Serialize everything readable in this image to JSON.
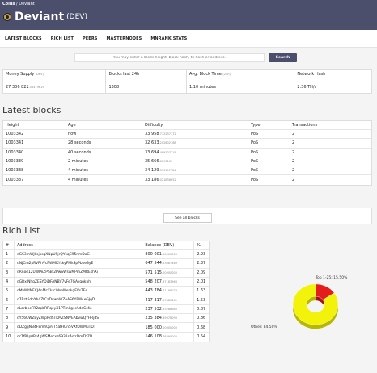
{
  "header": {
    "breadcrumb_home": "Coins",
    "breadcrumb_sep": "/",
    "breadcrumb_current": "Deviant",
    "title": "Deviant",
    "title_suffix": "(DEV)"
  },
  "nav": {
    "items": [
      "LATEST BLOCKS",
      "RICH LIST",
      "PEERS",
      "MASTERNODES",
      "MNRANK STATS"
    ]
  },
  "search": {
    "placeholder": "You may enter a block height, block hash, tx hash or address.",
    "button": "Search"
  },
  "stats": [
    {
      "label": "Money Supply",
      "label_small": "(DEV)",
      "value": "27 306 822",
      "value_small": ".55479619"
    },
    {
      "label": "Blocks last 24h",
      "label_small": "",
      "value": "1308",
      "value_small": ""
    },
    {
      "label": "Avg. Block Time",
      "label_small": "(24h)",
      "value": "1.10 minutes",
      "value_small": ""
    },
    {
      "label": "Network Hash",
      "label_small": "",
      "value": "2.36 TH/s",
      "value_small": ""
    }
  ],
  "latest_blocks": {
    "title": "Latest blocks",
    "headers": [
      "Height",
      "Age",
      "Difficulty",
      "Type",
      "Transactions"
    ],
    "rows": [
      {
        "height": "1003342",
        "age": "now",
        "diff": "33 958",
        "diff_small": ".772237772",
        "type": "PoS",
        "tx": "2"
      },
      {
        "height": "1003341",
        "age": "28 seconds",
        "diff": "32 633",
        "diff_small": ".202802168",
        "type": "PoS",
        "tx": "2"
      },
      {
        "height": "1003340",
        "age": "40 seconds",
        "diff": "33 694",
        "diff_small": ".489107719",
        "type": "PoS",
        "tx": "2"
      },
      {
        "height": "1003339",
        "age": "2 minutes",
        "diff": "35 666",
        "diff_small": ".6093109",
        "type": "PoS",
        "tx": "2"
      },
      {
        "height": "1003338",
        "age": "4 minutes",
        "diff": "34 129",
        "diff_small": ".590197184",
        "type": "PoS",
        "tx": "2"
      },
      {
        "height": "1003337",
        "age": "4 minutes",
        "diff": "33 186",
        "diff_small": ".021838652",
        "type": "PoS",
        "tx": "2"
      }
    ],
    "see_all": "See all blocks"
  },
  "rich_list": {
    "title": "Rich List",
    "headers": [
      "#",
      "Address",
      "Balance (DEV)",
      "%"
    ],
    "rows": [
      {
        "n": "1",
        "addr": "dGS3mWJksjksgXNpUSjrQYsqC95nmDoG",
        "bal": "800 001",
        "bal_small": ".00000000",
        "pct": "2.93"
      },
      {
        "n": "2",
        "addr": "dNJCm2pRVRhVcPWMKYskyFMkSpPbpe3yE",
        "bal": "647 544",
        "bal_small": ".53667489",
        "pct": "2.37"
      },
      {
        "n": "3",
        "addr": "dRnoe12UWPeZPSBf2PwSWswMPrnZMREshXi",
        "bal": "571 515",
        "bal_small": ".00000000",
        "pct": "2.09"
      },
      {
        "n": "4",
        "addr": "dGRxJNhgZESYDjDFANBV7vFe7GAyggkph",
        "bal": "548 207",
        "bal_small": ".37183966",
        "pct": "2.01"
      },
      {
        "n": "5",
        "addr": "dMvMdNECJ4nMcXkrcWonMezkgFVsTEe",
        "bal": "443 784",
        "bal_small": ".71198073",
        "pct": "1.63"
      },
      {
        "n": "6",
        "addr": "d7Bzt5dhYh4ZtCaDvwbWZoAS6YEM4eGJgD",
        "bal": "417 317",
        "bal_small": ".59683461",
        "pct": "1.53"
      },
      {
        "n": "7",
        "addr": "dLqrbhcFR2zpbRRqeyX1PTmkg4rAdeGr4o",
        "bal": "237 532",
        "bal_small": ".93288660",
        "pct": "0.87"
      },
      {
        "n": "8",
        "addr": "dY56CWZEyZWpRdSTKMZSNVEAbvwQYHRjdS",
        "bal": "235 384",
        "bal_small": ".49978090",
        "pct": "0.86"
      },
      {
        "n": "9",
        "addr": "dDZggNB4F8mhQv9T5afHUn5VXfDWMuTDT",
        "bal": "185 000",
        "bal_small": ".00000000",
        "pct": "0.68"
      },
      {
        "n": "10",
        "addr": "dcTfPLp0Ps4gWSMecxs6932sAstrDmTbZD",
        "bal": "146 108",
        "bal_small": ".76490000",
        "pct": "0.54"
      }
    ]
  },
  "chart_data": {
    "type": "pie",
    "categories": [
      "Top 1-25",
      "Other"
    ],
    "values": [
      15.5,
      84.5
    ],
    "labels": [
      "Top 1-25: 15.50%",
      "Other: 84.50%"
    ],
    "colors": [
      "#e51c1c",
      "#f2f20a"
    ]
  }
}
